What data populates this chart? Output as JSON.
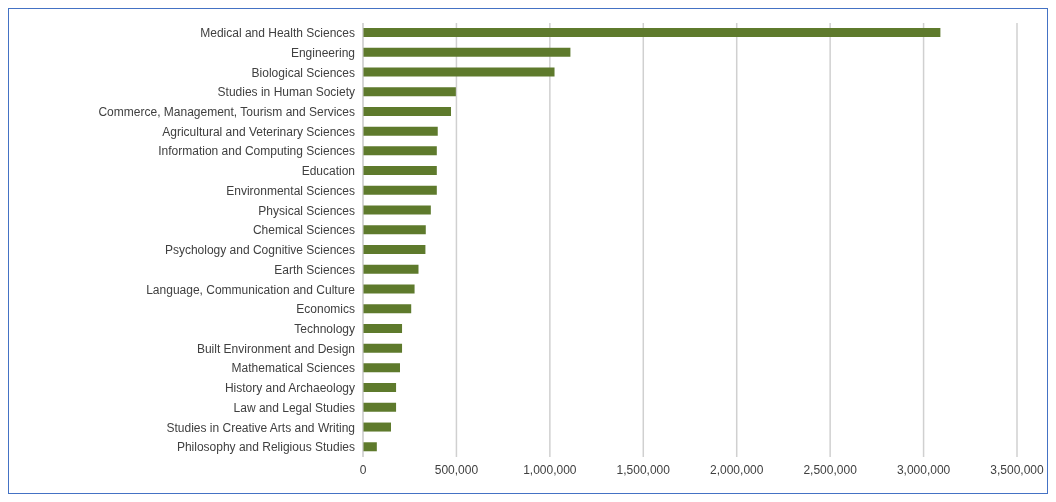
{
  "chart_data": {
    "type": "bar",
    "orientation": "horizontal",
    "categories": [
      "Medical and Health Sciences",
      "Engineering",
      "Biological Sciences",
      "Studies in Human Society",
      "Commerce, Management, Tourism and Services",
      "Agricultural and Veterinary Sciences",
      "Information and Computing Sciences",
      "Education",
      "Environmental Sciences",
      "Physical Sciences",
      "Chemical Sciences",
      "Psychology and Cognitive Sciences",
      "Earth Sciences",
      "Language, Communication and Culture",
      "Economics",
      "Technology",
      "Built Environment and Design",
      "Mathematical Sciences",
      "History and Archaeology",
      "Law and Legal Studies",
      "Studies in Creative Arts and Writing",
      "Philosophy and Religious Studies"
    ],
    "values": [
      3090000,
      1110000,
      1025000,
      497000,
      471000,
      400000,
      395000,
      395000,
      395000,
      363000,
      336000,
      334000,
      297000,
      276000,
      258000,
      209000,
      209000,
      198000,
      177000,
      177000,
      150000,
      74000
    ],
    "color": "#5e7a2c",
    "xlim": [
      0,
      3500000
    ],
    "xticks": [
      {
        "value": 0,
        "label": "0"
      },
      {
        "value": 500000,
        "label": "500,000"
      },
      {
        "value": 1000000,
        "label": "1,000,000"
      },
      {
        "value": 1500000,
        "label": "1,500,000"
      },
      {
        "value": 2000000,
        "label": "2,000,000"
      },
      {
        "value": 2500000,
        "label": "2,500,000"
      },
      {
        "value": 3000000,
        "label": "3,000,000"
      },
      {
        "value": 3500000,
        "label": "3,500,000"
      }
    ],
    "grid": "x"
  }
}
